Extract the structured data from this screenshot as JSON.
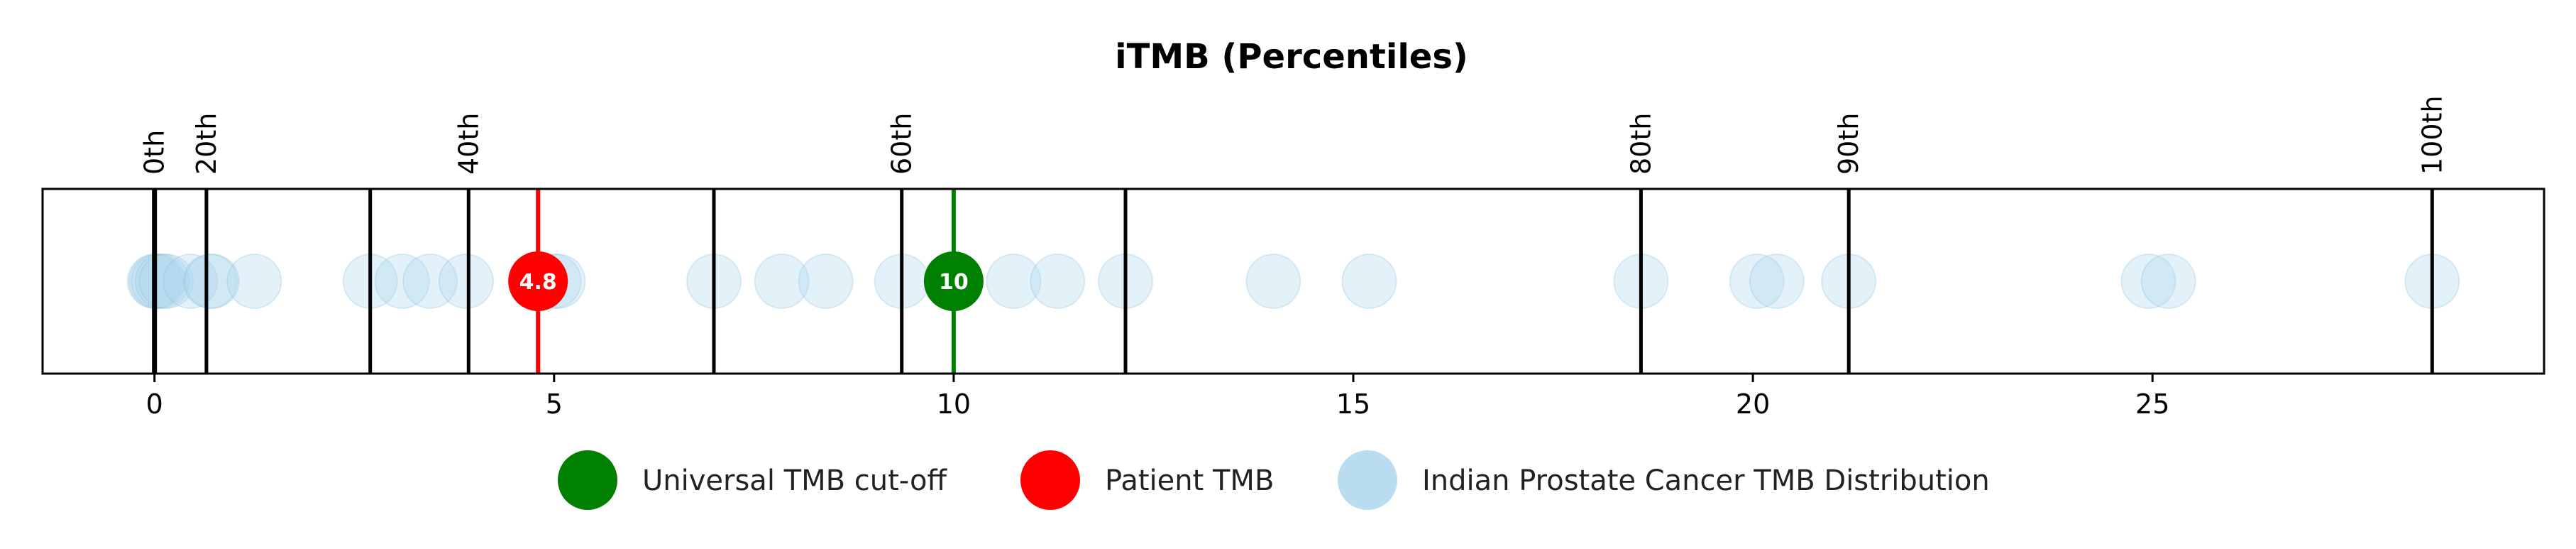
{
  "chart_data": {
    "type": "scatter",
    "title": "iTMB (Percentiles)",
    "xlim": [
      -1.4,
      29.9
    ],
    "xticks": [
      0,
      5,
      10,
      15,
      20,
      25
    ],
    "xtick_labels": [
      "0",
      "5",
      "10",
      "15",
      "20",
      "25"
    ],
    "grid": false,
    "legend_location": "bottom-center",
    "percentile_lines": [
      {
        "label": "0th",
        "x": 0.0
      },
      {
        "label": "20th",
        "x": 0.65
      },
      {
        "label": "",
        "x": 2.7
      },
      {
        "label": "40th",
        "x": 3.93
      },
      {
        "label": "",
        "x": 7.0
      },
      {
        "label": "60th",
        "x": 9.35
      },
      {
        "label": "",
        "x": 12.15
      },
      {
        "label": "80th",
        "x": 18.6
      },
      {
        "label": "90th",
        "x": 21.2
      },
      {
        "label": "100th",
        "x": 28.5
      }
    ],
    "series": [
      {
        "name": "Indian Prostate Cancer TMB Distribution",
        "color": "#aed6ee",
        "values": [
          0.0,
          0.02,
          0.05,
          0.1,
          0.15,
          0.45,
          0.7,
          0.72,
          1.25,
          2.7,
          3.1,
          3.45,
          3.9,
          5.0,
          5.05,
          7.0,
          7.85,
          8.4,
          9.35,
          10.75,
          11.3,
          12.15,
          14.0,
          15.2,
          18.6,
          20.05,
          20.3,
          21.2,
          24.95,
          25.2,
          28.5
        ]
      },
      {
        "name": "Patient TMB",
        "color": "#ff0000",
        "values": [
          4.8
        ],
        "label": "4.8"
      },
      {
        "name": "Universal TMB cut-off",
        "color": "#008000",
        "values": [
          10
        ],
        "label": "10"
      }
    ],
    "legend": [
      {
        "label": "Universal TMB cut-off",
        "color": "#008000",
        "marker": "green-circle-icon"
      },
      {
        "label": "Patient TMB",
        "color": "#ff0000",
        "marker": "red-circle-icon"
      },
      {
        "label": "Indian Prostate Cancer TMB Distribution",
        "color": "#aed6ee",
        "marker": "light-blue-circle-icon"
      }
    ]
  }
}
